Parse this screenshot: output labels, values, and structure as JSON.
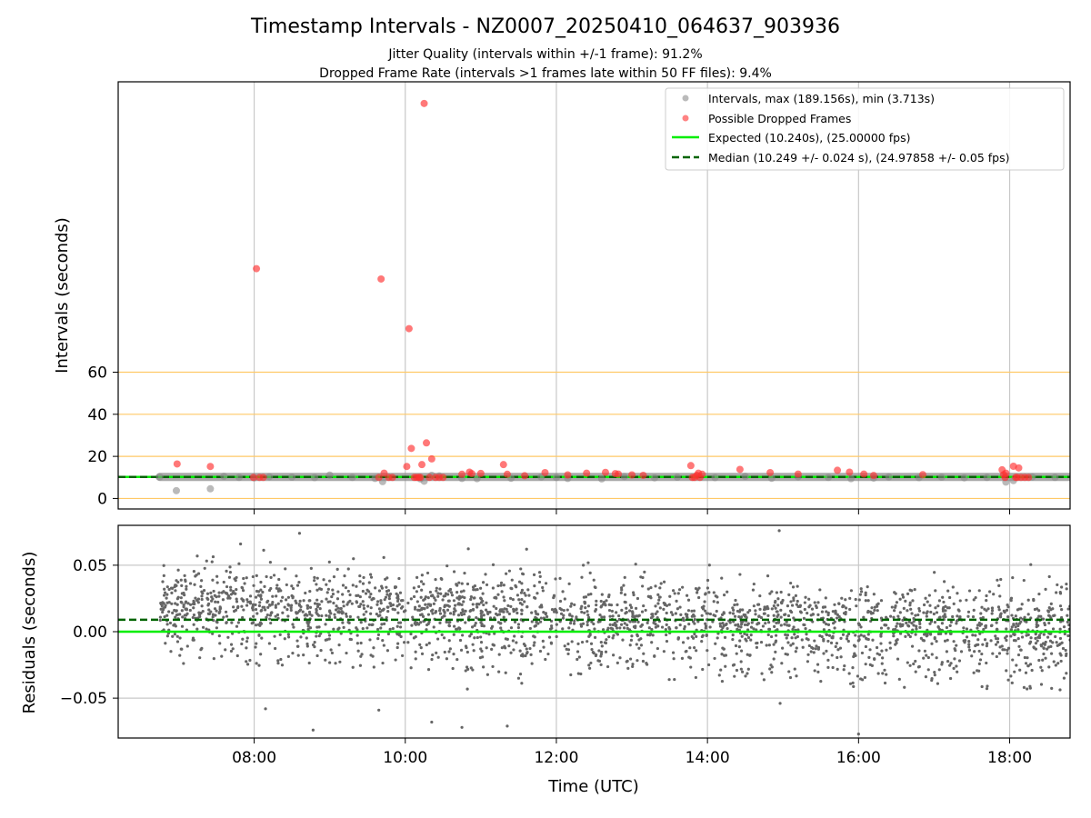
{
  "figure": {
    "title": "Timestamp Intervals - NZ0007_20250410_064637_903936",
    "subtitle_line1": "Jitter Quality (intervals within +/-1 frame): 91.2%",
    "subtitle_line2": "Dropped Frame Rate (intervals >1 frames late within 50 FF files): 9.4%"
  },
  "colors": {
    "interval_points": "#8c8c8c",
    "dropped_points": "#ff3030",
    "expected_line": "#00ee00",
    "median_line": "#006400",
    "threshold_lines": "#ffc966",
    "grid": "#c8c8c8",
    "residual_points": "#666666"
  },
  "chart_data": [
    {
      "type": "scatter",
      "panel": "top",
      "ylabel": "Intervals (seconds)",
      "xlim_hours": [
        6.2,
        18.8
      ],
      "ylim": [
        -5,
        198
      ],
      "yticks": [
        0,
        20,
        40,
        60
      ],
      "ytick_labels": [
        "0",
        "20",
        "40",
        "60"
      ],
      "xticks_hours": [
        8,
        10,
        12,
        14,
        16,
        18
      ],
      "threshold_lines_y": [
        0,
        20,
        40,
        60
      ],
      "grid": "vertical",
      "legend_position": "top-right",
      "legend": [
        {
          "label": "Intervals, max (189.156s), min (3.713s)",
          "kind": "gray-marker"
        },
        {
          "label": "Possible Dropped Frames",
          "kind": "red-marker"
        },
        {
          "label": "Expected (10.240s), (25.00000 fps)",
          "kind": "green-line"
        },
        {
          "label": "Median (10.249 +/- 0.024 s), (24.97858 +/- 0.05 fps)",
          "kind": "dashed-line"
        }
      ],
      "expected_value": 10.24,
      "median_value": 10.249,
      "series": [
        {
          "name": "Intervals, max (189.156s), min (3.713s)",
          "x_hours": [
            6.75,
            6.97,
            7.42,
            7.6,
            7.8,
            8.0,
            8.2,
            8.5,
            8.8,
            9.0,
            9.3,
            9.6,
            9.7,
            10.2,
            10.25,
            10.35,
            10.45,
            10.75,
            10.95,
            11.4,
            11.8,
            12.0,
            12.15,
            12.6,
            12.9,
            13.3,
            13.6,
            14.1,
            14.5,
            14.85,
            15.2,
            15.6,
            15.9,
            16.2,
            16.4,
            16.8,
            17.1,
            17.4,
            17.7,
            17.95,
            18.05,
            18.3,
            18.6
          ],
          "y": [
            10.2,
            3.7,
            4.6,
            10.5,
            10.0,
            9.8,
            10.3,
            10.1,
            9.9,
            11.1,
            10.0,
            9.5,
            8.0,
            9.3,
            8.2,
            11.0,
            10.7,
            9.5,
            9.4,
            9.6,
            10.2,
            10.0,
            9.5,
            9.3,
            10.4,
            9.8,
            10.1,
            9.9,
            10.5,
            9.6,
            10.3,
            10.0,
            9.4,
            9.7,
            10.2,
            9.9,
            10.1,
            9.8,
            10.0,
            7.8,
            8.5,
            10.2,
            10.0
          ]
        },
        {
          "name": "Possible Dropped Frames",
          "x_hours": [
            6.98,
            7.42,
            7.99,
            8.03,
            8.07,
            8.12,
            9.65,
            9.68,
            9.72,
            9.78,
            9.83,
            10.02,
            10.05,
            10.08,
            10.12,
            10.15,
            10.18,
            10.2,
            10.22,
            10.25,
            10.28,
            10.32,
            10.35,
            10.4,
            10.45,
            10.5,
            10.75,
            10.85,
            10.88,
            11.0,
            11.3,
            11.35,
            11.58,
            11.85,
            12.15,
            12.4,
            12.65,
            12.78,
            12.82,
            13.0,
            13.15,
            13.78,
            13.8,
            13.83,
            13.86,
            13.88,
            13.9,
            13.93,
            14.43,
            14.83,
            15.2,
            15.72,
            15.88,
            16.07,
            16.2,
            16.85,
            17.9,
            17.92,
            17.94,
            17.95,
            18.05,
            18.08,
            18.1,
            18.12,
            18.15,
            18.2,
            18.25
          ],
          "y": [
            16.4,
            15.2,
            10.0,
            109.2,
            10.0,
            10.0,
            10.0,
            104.3,
            12.0,
            10.0,
            10.0,
            15.2,
            80.7,
            23.8,
            10.0,
            10.0,
            10.0,
            10.0,
            16.1,
            187.7,
            26.4,
            10.0,
            18.8,
            10.0,
            10.0,
            10.0,
            11.5,
            12.5,
            11.8,
            11.9,
            16.1,
            11.5,
            10.8,
            12.3,
            11.2,
            12.0,
            12.4,
            11.8,
            11.6,
            11.2,
            11.0,
            15.6,
            10.0,
            10.0,
            11.0,
            12.0,
            10.0,
            11.5,
            13.8,
            12.3,
            11.6,
            13.4,
            12.5,
            11.6,
            10.9,
            11.3,
            13.6,
            11.3,
            10.0,
            12.0,
            15.3,
            10.0,
            10.0,
            14.5,
            10.0,
            10.0,
            10.0
          ]
        }
      ]
    },
    {
      "type": "scatter",
      "panel": "bottom",
      "xlabel": "Time (UTC)",
      "ylabel": "Residuals (seconds)",
      "xlim_hours": [
        6.2,
        18.8
      ],
      "ylim": [
        -0.08,
        0.08
      ],
      "yticks": [
        -0.05,
        0.0,
        0.05
      ],
      "ytick_labels": [
        "−0.05",
        "0.00",
        "0.05"
      ],
      "xticks_hours": [
        8,
        10,
        12,
        14,
        16,
        18
      ],
      "xtick_labels": [
        "08:00",
        "10:00",
        "12:00",
        "14:00",
        "16:00",
        "18:00"
      ],
      "grid": "both",
      "expected_residual": 0.0,
      "median_residual": 0.009,
      "x_start_hours": 6.75,
      "x_end_hours": 18.8,
      "residual_center_range": [
        0.02,
        0.0
      ],
      "residual_spread": 0.015,
      "residual_point_count": 2600,
      "series": [
        {
          "name": "Residuals",
          "outlier_x_hours": [
            7.82,
            8.15,
            8.6,
            8.78,
            9.65,
            10.35,
            10.75,
            11.35,
            14.95,
            16.0
          ],
          "outlier_y": [
            0.066,
            -0.058,
            0.074,
            -0.074,
            -0.059,
            -0.068,
            -0.072,
            -0.071,
            0.076,
            -0.077
          ]
        }
      ]
    }
  ]
}
